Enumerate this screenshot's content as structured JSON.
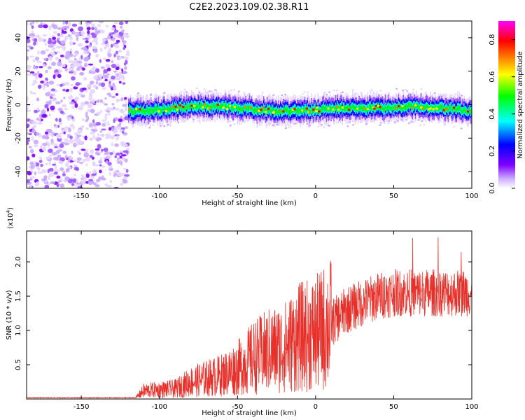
{
  "title": "C2E2.2023.109.02.38.R11",
  "chart_data": [
    {
      "type": "heatmap",
      "title": "C2E2.2023.109.02.38.R11",
      "xlabel": "Height of straight line (km)",
      "ylabel": "Frequency (Hz)",
      "xlim": [
        -185,
        100
      ],
      "ylim": [
        -50,
        50
      ],
      "x_ticks": [
        -150,
        -100,
        -50,
        0,
        50,
        100
      ],
      "y_ticks": [
        -40,
        -20,
        0,
        20,
        40
      ],
      "noise_region_x": [
        -185,
        -120
      ],
      "signal_band": {
        "x_start": -120,
        "x_end": 100,
        "center_frequency_hz": [
          {
            "x": -120,
            "y": -4
          },
          {
            "x": -100,
            "y": -3
          },
          {
            "x": -80,
            "y": -1
          },
          {
            "x": -60,
            "y": -1
          },
          {
            "x": -40,
            "y": -3
          },
          {
            "x": -20,
            "y": -4
          },
          {
            "x": 0,
            "y": -3
          },
          {
            "x": 20,
            "y": -2
          },
          {
            "x": 40,
            "y": -2
          },
          {
            "x": 60,
            "y": -1
          },
          {
            "x": 80,
            "y": -2
          },
          {
            "x": 100,
            "y": -4
          }
        ],
        "half_width_hz": 5
      },
      "colorbar": {
        "label": "Normalized spectral amplitude",
        "range": [
          0,
          0.9
        ],
        "ticks": [
          "0.0",
          "0.2",
          "0.4",
          "0.6",
          "0.8"
        ],
        "colormap": [
          "#ffffff",
          "#7f00ff",
          "#0000ff",
          "#00ffff",
          "#00ff00",
          "#ffff00",
          "#ff8000",
          "#ff0000",
          "#ff00ff"
        ]
      }
    },
    {
      "type": "line",
      "xlabel": "Height of straight line (km)",
      "ylabel": "SNR (10 * v/v)",
      "y_multiplier": "(x10",
      "y_multiplier_exp": "4",
      "y_multiplier_close": ")",
      "xlim": [
        -185,
        100
      ],
      "ylim": [
        0,
        2.45
      ],
      "x_ticks": [
        -150,
        -100,
        -50,
        0,
        50,
        100
      ],
      "y_ticks": [
        "0.5",
        "1.0",
        "1.5",
        "2.0"
      ],
      "color": "#e8302a",
      "envelope": [
        {
          "x": -185,
          "y": 0.02
        },
        {
          "x": -115,
          "y": 0.02
        },
        {
          "x": -110,
          "y": 0.12
        },
        {
          "x": -90,
          "y": 0.15
        },
        {
          "x": -80,
          "y": 0.25
        },
        {
          "x": -60,
          "y": 0.35
        },
        {
          "x": -50,
          "y": 0.45
        },
        {
          "x": -40,
          "y": 0.6
        },
        {
          "x": -30,
          "y": 0.7
        },
        {
          "x": -20,
          "y": 0.75
        },
        {
          "x": -10,
          "y": 0.9
        },
        {
          "x": 0,
          "y": 0.95
        },
        {
          "x": 10,
          "y": 1.1
        },
        {
          "x": 20,
          "y": 1.3
        },
        {
          "x": 30,
          "y": 1.4
        },
        {
          "x": 40,
          "y": 1.5
        },
        {
          "x": 50,
          "y": 1.55
        },
        {
          "x": 60,
          "y": 1.55
        },
        {
          "x": 70,
          "y": 1.55
        },
        {
          "x": 80,
          "y": 1.55
        },
        {
          "x": 90,
          "y": 1.55
        },
        {
          "x": 100,
          "y": 1.55
        }
      ]
    }
  ]
}
